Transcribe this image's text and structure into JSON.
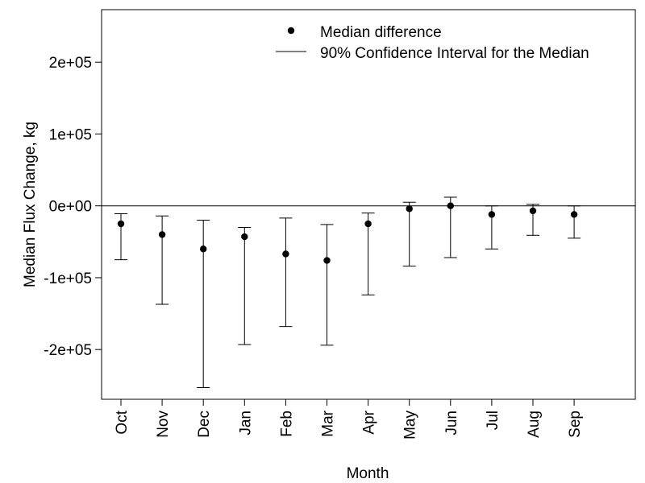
{
  "chart_data": {
    "type": "scatter",
    "xlabel": "Month",
    "ylabel": "Median Flux Change, kg",
    "categories": [
      "Oct",
      "Nov",
      "Dec",
      "Jan",
      "Feb",
      "Mar",
      "Apr",
      "May",
      "Jun",
      "Jul",
      "Aug",
      "Sep"
    ],
    "ylim": [
      -270000,
      270000
    ],
    "yticks": [
      {
        "value": 200000,
        "label": "2e+05"
      },
      {
        "value": 100000,
        "label": "1e+05"
      },
      {
        "value": 0,
        "label": "0e+00"
      },
      {
        "value": -100000,
        "label": "-1e+05"
      },
      {
        "value": -200000,
        "label": "-2e+05"
      }
    ],
    "reference_line": 0,
    "series": [
      {
        "name": "Median difference",
        "values": [
          -25000,
          -40000,
          -60000,
          -43000,
          -67000,
          -76000,
          -25000,
          -4000,
          0,
          -12000,
          -7000,
          -12000
        ]
      }
    ],
    "intervals": {
      "name": "90% Confidence Interval for the Median",
      "lower": [
        -75000,
        -137000,
        -253000,
        -193000,
        -168000,
        -194000,
        -124000,
        -84000,
        -72000,
        -60000,
        -41000,
        -45000
      ],
      "upper": [
        -11000,
        -14000,
        -20000,
        -30000,
        -17000,
        -26000,
        -10000,
        5000,
        12000,
        0,
        2000,
        0
      ]
    },
    "legend": {
      "position": "top-right",
      "entries": [
        "Median difference",
        "90% Confidence Interval for the Median"
      ]
    },
    "grid": false
  }
}
